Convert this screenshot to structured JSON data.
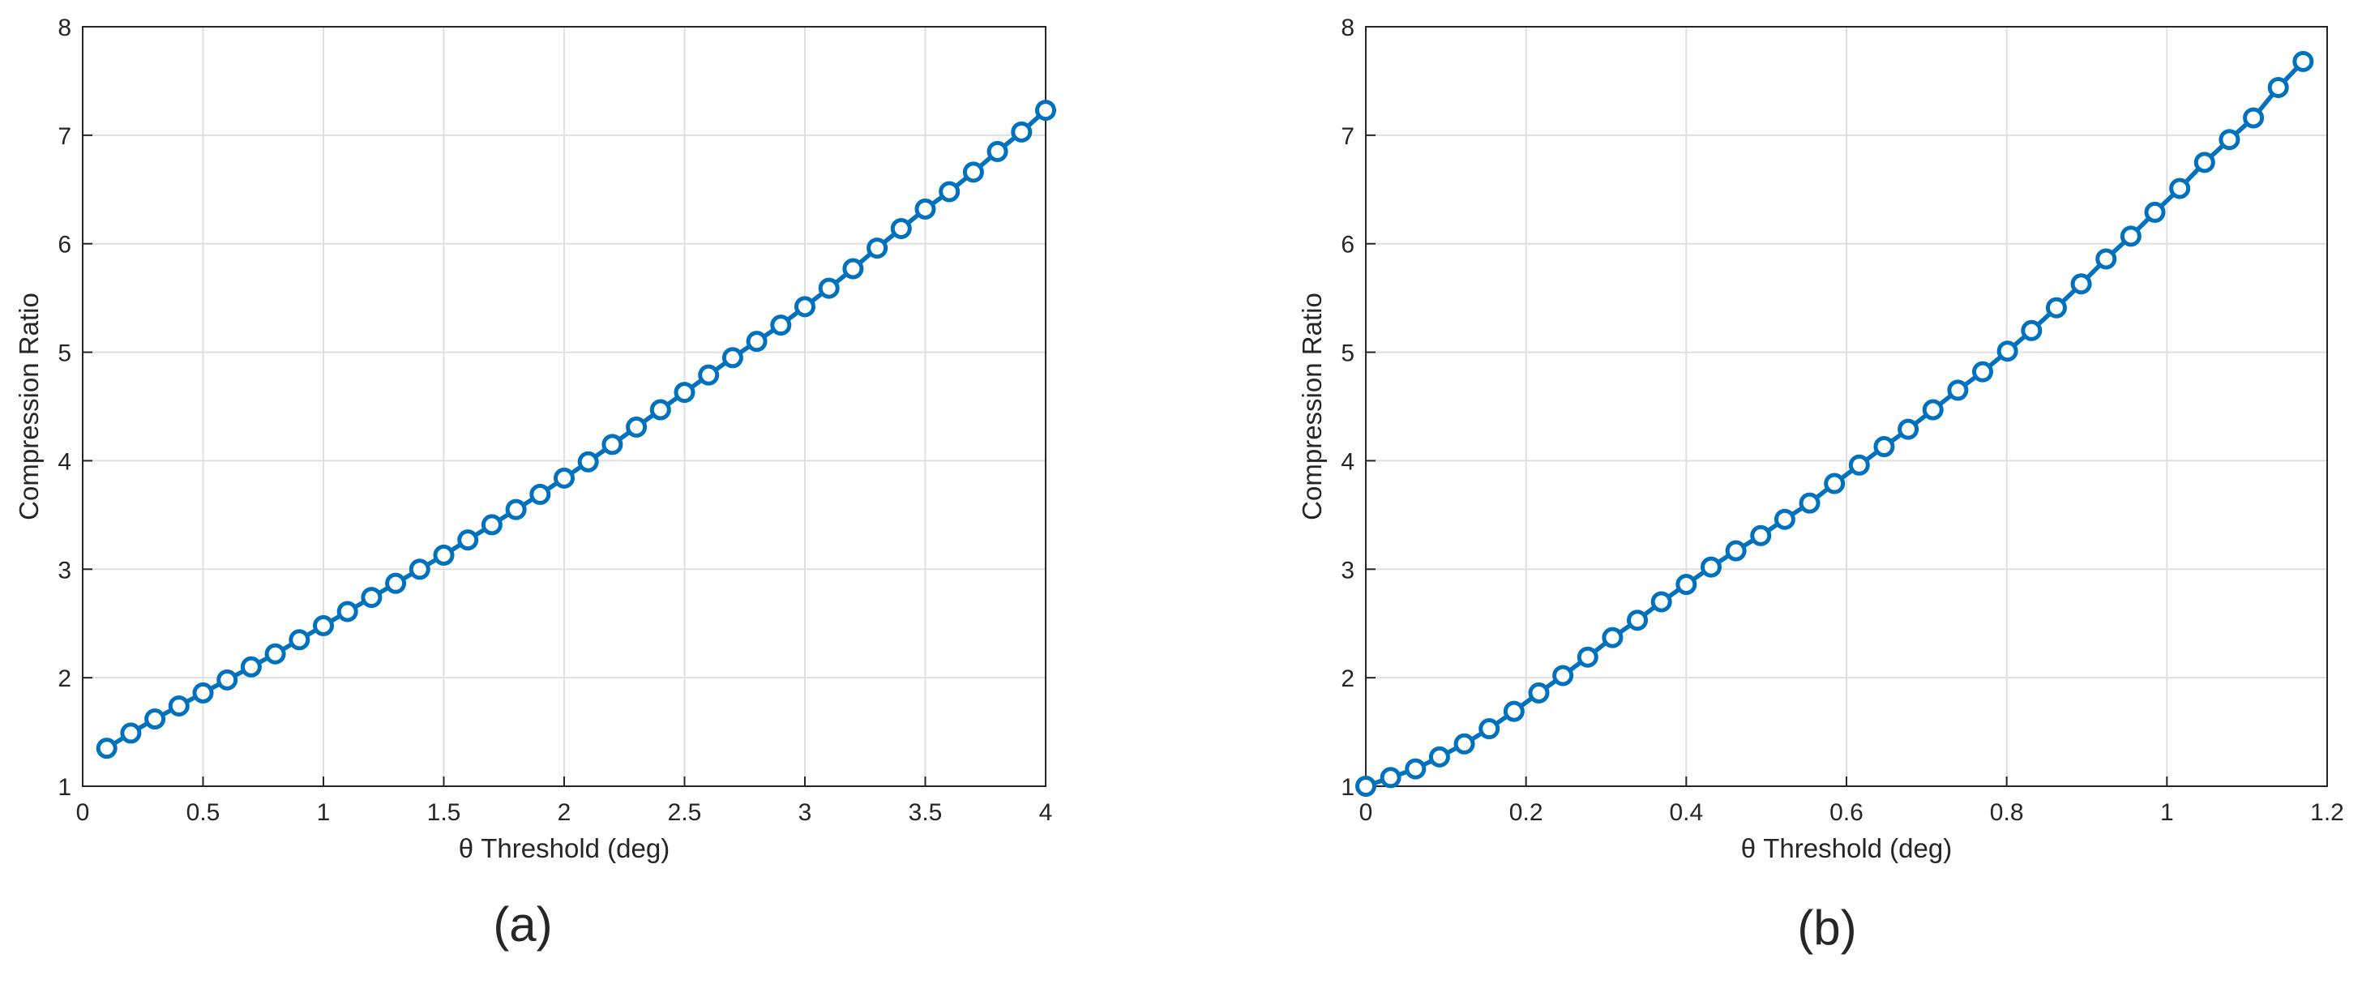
{
  "chart_data": [
    {
      "type": "line",
      "panel_label": "(a)",
      "xlabel": "θ Threshold (deg)",
      "ylabel": "Compression Ratio",
      "x": [
        0.1,
        0.2,
        0.3,
        0.4,
        0.5,
        0.6,
        0.7,
        0.8,
        0.9,
        1.0,
        1.1,
        1.2,
        1.3,
        1.4,
        1.5,
        1.6,
        1.7,
        1.8,
        1.9,
        2.0,
        2.1,
        2.2,
        2.3,
        2.4,
        2.5,
        2.6,
        2.7,
        2.8,
        2.9,
        3.0,
        3.1,
        3.2,
        3.3,
        3.4,
        3.5,
        3.6,
        3.7,
        3.8,
        3.9,
        4.0
      ],
      "values": [
        1.35,
        1.49,
        1.62,
        1.74,
        1.86,
        1.98,
        2.1,
        2.22,
        2.35,
        2.48,
        2.61,
        2.74,
        2.87,
        3.0,
        3.13,
        3.27,
        3.41,
        3.55,
        3.69,
        3.84,
        3.99,
        4.15,
        4.31,
        4.47,
        4.63,
        4.79,
        4.95,
        5.1,
        5.25,
        5.42,
        5.59,
        5.77,
        5.96,
        6.14,
        6.32,
        6.48,
        6.66,
        6.85,
        7.03,
        7.23
      ],
      "color": "#0072bd",
      "xlim": [
        0,
        4
      ],
      "ylim": [
        1,
        8
      ],
      "xticks": [
        0,
        0.5,
        1,
        1.5,
        2,
        2.5,
        3,
        3.5,
        4
      ],
      "yticks": [
        1,
        2,
        3,
        4,
        5,
        6,
        7,
        8
      ],
      "grid": true
    },
    {
      "type": "line",
      "panel_label": "(b)",
      "xlabel": "θ Threshold (deg)",
      "ylabel": "Compression Ratio",
      "x": [
        0,
        0.031,
        0.062,
        0.092,
        0.123,
        0.154,
        0.185,
        0.216,
        0.246,
        0.277,
        0.308,
        0.339,
        0.369,
        0.4,
        0.431,
        0.462,
        0.493,
        0.523,
        0.554,
        0.585,
        0.616,
        0.647,
        0.677,
        0.708,
        0.739,
        0.77,
        0.801,
        0.831,
        0.862,
        0.893,
        0.924,
        0.955,
        0.985,
        1.016,
        1.047,
        1.078,
        1.108,
        1.139,
        1.17
      ],
      "values": [
        1.0,
        1.08,
        1.16,
        1.27,
        1.39,
        1.53,
        1.69,
        1.86,
        2.02,
        2.19,
        2.37,
        2.53,
        2.7,
        2.86,
        3.02,
        3.17,
        3.31,
        3.46,
        3.61,
        3.79,
        3.96,
        4.13,
        4.29,
        4.47,
        4.65,
        4.82,
        5.01,
        5.2,
        5.41,
        5.63,
        5.86,
        6.07,
        6.29,
        6.51,
        6.75,
        6.96,
        7.16,
        7.44,
        7.68
      ],
      "color": "#0072bd",
      "xlim": [
        0,
        1.2
      ],
      "ylim": [
        1,
        8
      ],
      "xticks": [
        0,
        0.2,
        0.4,
        0.6,
        0.8,
        1,
        1.2
      ],
      "yticks": [
        1,
        2,
        3,
        4,
        5,
        6,
        7,
        8
      ],
      "grid": true
    }
  ]
}
